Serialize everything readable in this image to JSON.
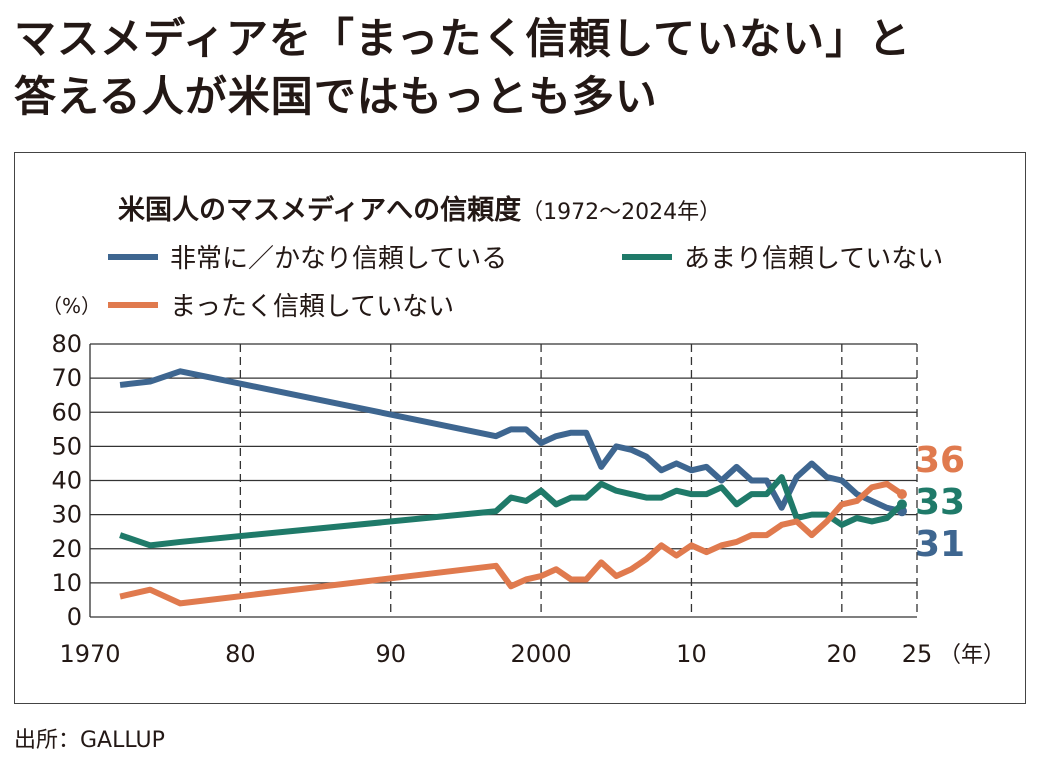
{
  "headline": [
    "マスメディアを「まったく信頼していない」と",
    "答える人が米国ではもっとも多い"
  ],
  "source": "出所：GALLUP",
  "chart_data": {
    "type": "line",
    "title": "米国人のマスメディアへの信頼度",
    "subtitle": "（1972〜2024年）",
    "ylabel": "（%）",
    "xunit": "（年）",
    "xlim": [
      1970,
      2025
    ],
    "ylim": [
      0,
      80
    ],
    "xticks": [
      1970,
      1980,
      1990,
      2000,
      2010,
      2020,
      2025
    ],
    "xtick_labels": [
      "1970",
      "80",
      "90",
      "2000",
      "10",
      "20",
      "25"
    ],
    "yticks": [
      0,
      10,
      20,
      30,
      40,
      50,
      60,
      70,
      80
    ],
    "grid": true,
    "legend": "top",
    "x": [
      1972,
      1974,
      1976,
      1997,
      1998,
      1999,
      2000,
      2001,
      2002,
      2003,
      2004,
      2005,
      2006,
      2007,
      2008,
      2009,
      2010,
      2011,
      2012,
      2013,
      2014,
      2015,
      2016,
      2017,
      2018,
      2019,
      2020,
      2021,
      2022,
      2023,
      2024
    ],
    "series": [
      {
        "name": "非常に／かなり信頼している",
        "color": "#3e6690",
        "end_label": "31",
        "values": [
          68,
          69,
          72,
          53,
          55,
          55,
          51,
          53,
          54,
          54,
          44,
          50,
          49,
          47,
          43,
          45,
          43,
          44,
          40,
          44,
          40,
          40,
          32,
          41,
          45,
          41,
          40,
          36,
          34,
          32,
          31
        ]
      },
      {
        "name": "あまり信頼していない",
        "color": "#1f7a69",
        "end_label": "33",
        "values": [
          24,
          21,
          22,
          31,
          35,
          34,
          37,
          33,
          35,
          35,
          39,
          37,
          36,
          35,
          35,
          37,
          36,
          36,
          38,
          33,
          36,
          36,
          41,
          29,
          30,
          30,
          27,
          29,
          28,
          29,
          33
        ]
      },
      {
        "name": "まったく信頼していない",
        "color": "#e07a4e",
        "end_label": "36",
        "values": [
          6,
          8,
          4,
          15,
          9,
          11,
          12,
          14,
          11,
          11,
          16,
          12,
          14,
          17,
          21,
          18,
          21,
          19,
          21,
          22,
          24,
          24,
          27,
          28,
          24,
          28,
          33,
          34,
          38,
          39,
          36
        ]
      }
    ]
  }
}
